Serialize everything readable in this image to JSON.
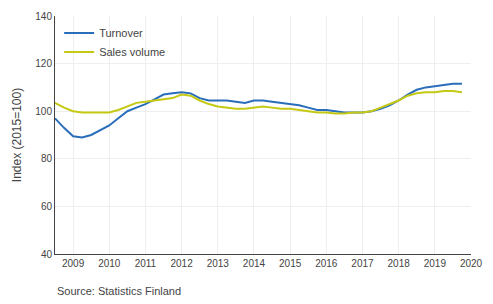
{
  "chart_data": {
    "type": "line",
    "x": [
      2008.5,
      2008.75,
      2009.0,
      2009.25,
      2009.5,
      2009.75,
      2010.0,
      2010.25,
      2010.5,
      2010.75,
      2011.0,
      2011.25,
      2011.5,
      2011.75,
      2012.0,
      2012.25,
      2012.5,
      2012.75,
      2013.0,
      2013.25,
      2013.5,
      2013.75,
      2014.0,
      2014.25,
      2014.5,
      2014.75,
      2015.0,
      2015.25,
      2015.5,
      2015.75,
      2016.0,
      2016.25,
      2016.5,
      2016.75,
      2017.0,
      2017.25,
      2017.5,
      2017.75,
      2018.0,
      2018.25,
      2018.5,
      2018.75,
      2019.0,
      2019.25,
      2019.5,
      2019.75
    ],
    "series": [
      {
        "name": "Turnover",
        "color": "#2a6ebb",
        "values": [
          97.0,
          93.0,
          89.5,
          89.0,
          90.0,
          92.0,
          94.0,
          97.0,
          100.0,
          101.5,
          103.0,
          105.0,
          107.0,
          107.5,
          108.0,
          107.5,
          105.5,
          104.5,
          104.5,
          104.5,
          104.0,
          103.5,
          104.5,
          104.5,
          104.0,
          103.5,
          103.0,
          102.5,
          101.5,
          100.5,
          100.5,
          100.0,
          99.5,
          99.5,
          99.5,
          100.0,
          101.0,
          102.5,
          104.5,
          107.0,
          109.0,
          110.0,
          110.5,
          111.0,
          111.5,
          111.5
        ]
      },
      {
        "name": "Sales volume",
        "color": "#c5c913",
        "values": [
          103.5,
          101.5,
          100.0,
          99.5,
          99.5,
          99.5,
          99.5,
          100.5,
          102.0,
          103.5,
          104.0,
          104.5,
          105.0,
          105.5,
          107.0,
          106.5,
          104.5,
          103.0,
          102.0,
          101.5,
          101.0,
          101.0,
          101.5,
          102.0,
          101.5,
          101.0,
          101.0,
          100.5,
          100.0,
          99.5,
          99.5,
          99.0,
          99.0,
          99.5,
          99.5,
          100.0,
          101.5,
          103.0,
          104.5,
          106.5,
          107.5,
          108.0,
          108.0,
          108.5,
          108.5,
          108.0
        ]
      }
    ],
    "ylabel": "Index (2015=100)",
    "xlim": [
      2008.5,
      2020.0
    ],
    "ylim": [
      40,
      140
    ],
    "xticks": [
      2009,
      2010,
      2011,
      2012,
      2013,
      2014,
      2015,
      2016,
      2017,
      2018,
      2019,
      2020
    ],
    "yticks": [
      40,
      60,
      80,
      100,
      120,
      140
    ],
    "grid": true,
    "legend": "upper left",
    "annotations": [
      "Source: Statistics Finland"
    ]
  }
}
